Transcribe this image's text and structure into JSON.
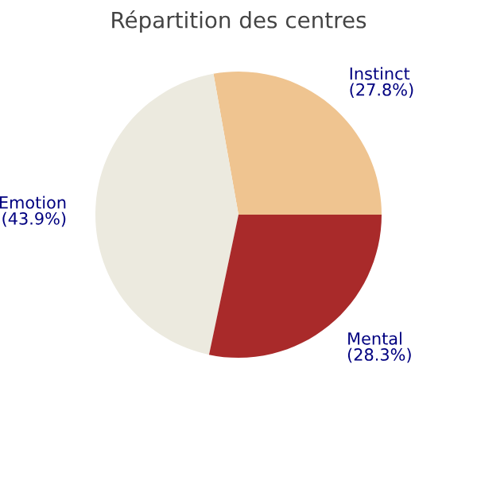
{
  "chart_data": {
    "type": "pie",
    "title": "Répartition des centres",
    "categories": [
      "Instinct",
      "Emotion",
      "Mental"
    ],
    "values": [
      27.8,
      43.9,
      28.3
    ],
    "value_labels": [
      "(27.8%)",
      "(43.9%)",
      "(28.3%)"
    ],
    "colors": [
      "#efc490",
      "#eceadf",
      "#a92a2a"
    ]
  }
}
